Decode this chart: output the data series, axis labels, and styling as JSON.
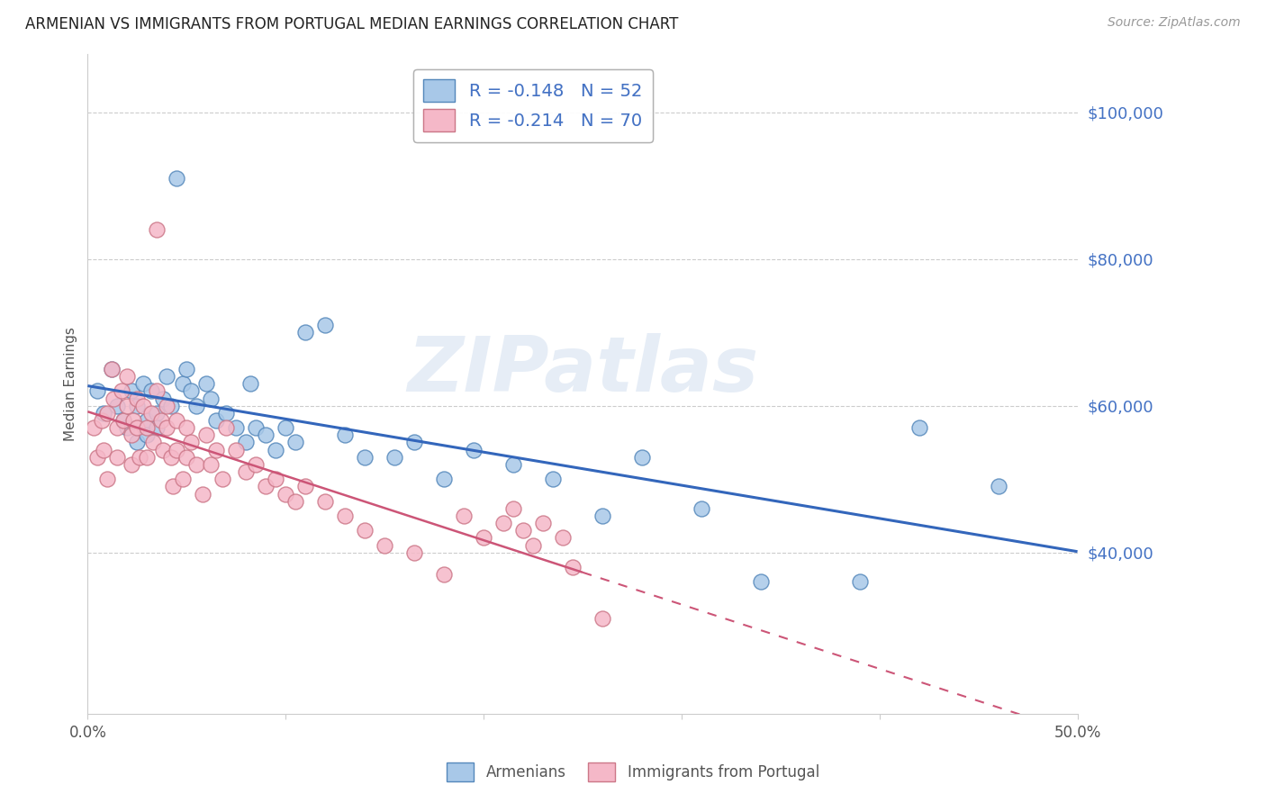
{
  "title": "ARMENIAN VS IMMIGRANTS FROM PORTUGAL MEDIAN EARNINGS CORRELATION CHART",
  "source": "Source: ZipAtlas.com",
  "ylabel": "Median Earnings",
  "xlim": [
    0.0,
    0.5
  ],
  "ylim": [
    18000,
    108000
  ],
  "yticks": [
    40000,
    60000,
    80000,
    100000
  ],
  "xticks": [
    0.0,
    0.1,
    0.2,
    0.3,
    0.4,
    0.5
  ],
  "xtick_labels": [
    "0.0%",
    "",
    "",
    "",
    "",
    "50.0%"
  ],
  "blue_color": "#a8c8e8",
  "blue_edge_color": "#5588bb",
  "pink_color": "#f5b8c8",
  "pink_edge_color": "#cc7788",
  "blue_line_color": "#3366bb",
  "pink_line_color": "#cc5577",
  "r_blue": -0.148,
  "n_blue": 52,
  "r_pink": -0.214,
  "n_pink": 70,
  "legend_label_blue": "Armenians",
  "legend_label_pink": "Immigrants from Portugal",
  "watermark": "ZIPatlas",
  "ytick_color": "#4472c4",
  "title_color": "#222222",
  "source_color": "#999999",
  "blue_scatter_x": [
    0.005,
    0.008,
    0.012,
    0.015,
    0.018,
    0.02,
    0.022,
    0.025,
    0.025,
    0.028,
    0.03,
    0.03,
    0.032,
    0.035,
    0.035,
    0.038,
    0.04,
    0.042,
    0.045,
    0.048,
    0.05,
    0.052,
    0.055,
    0.06,
    0.062,
    0.065,
    0.07,
    0.075,
    0.08,
    0.082,
    0.085,
    0.09,
    0.095,
    0.1,
    0.105,
    0.11,
    0.12,
    0.13,
    0.14,
    0.155,
    0.165,
    0.18,
    0.195,
    0.215,
    0.235,
    0.26,
    0.28,
    0.31,
    0.34,
    0.39,
    0.42,
    0.46
  ],
  "blue_scatter_y": [
    62000,
    59000,
    65000,
    60000,
    58000,
    57000,
    62000,
    60000,
    55000,
    63000,
    58000,
    56000,
    62000,
    59000,
    57000,
    61000,
    64000,
    60000,
    91000,
    63000,
    65000,
    62000,
    60000,
    63000,
    61000,
    58000,
    59000,
    57000,
    55000,
    63000,
    57000,
    56000,
    54000,
    57000,
    55000,
    70000,
    71000,
    56000,
    53000,
    53000,
    55000,
    50000,
    54000,
    52000,
    50000,
    45000,
    53000,
    46000,
    36000,
    36000,
    57000,
    49000
  ],
  "pink_scatter_x": [
    0.003,
    0.005,
    0.007,
    0.008,
    0.01,
    0.01,
    0.012,
    0.013,
    0.015,
    0.015,
    0.017,
    0.018,
    0.02,
    0.02,
    0.022,
    0.022,
    0.023,
    0.025,
    0.025,
    0.026,
    0.028,
    0.03,
    0.03,
    0.032,
    0.033,
    0.035,
    0.035,
    0.037,
    0.038,
    0.04,
    0.04,
    0.042,
    0.043,
    0.045,
    0.045,
    0.048,
    0.05,
    0.05,
    0.052,
    0.055,
    0.058,
    0.06,
    0.062,
    0.065,
    0.068,
    0.07,
    0.075,
    0.08,
    0.085,
    0.09,
    0.095,
    0.1,
    0.105,
    0.11,
    0.12,
    0.13,
    0.14,
    0.15,
    0.165,
    0.18,
    0.19,
    0.2,
    0.21,
    0.215,
    0.22,
    0.225,
    0.23,
    0.24,
    0.245,
    0.26
  ],
  "pink_scatter_y": [
    57000,
    53000,
    58000,
    54000,
    59000,
    50000,
    65000,
    61000,
    57000,
    53000,
    62000,
    58000,
    64000,
    60000,
    56000,
    52000,
    58000,
    61000,
    57000,
    53000,
    60000,
    57000,
    53000,
    59000,
    55000,
    84000,
    62000,
    58000,
    54000,
    60000,
    57000,
    53000,
    49000,
    58000,
    54000,
    50000,
    57000,
    53000,
    55000,
    52000,
    48000,
    56000,
    52000,
    54000,
    50000,
    57000,
    54000,
    51000,
    52000,
    49000,
    50000,
    48000,
    47000,
    49000,
    47000,
    45000,
    43000,
    41000,
    40000,
    37000,
    45000,
    42000,
    44000,
    46000,
    43000,
    41000,
    44000,
    42000,
    38000,
    31000
  ]
}
